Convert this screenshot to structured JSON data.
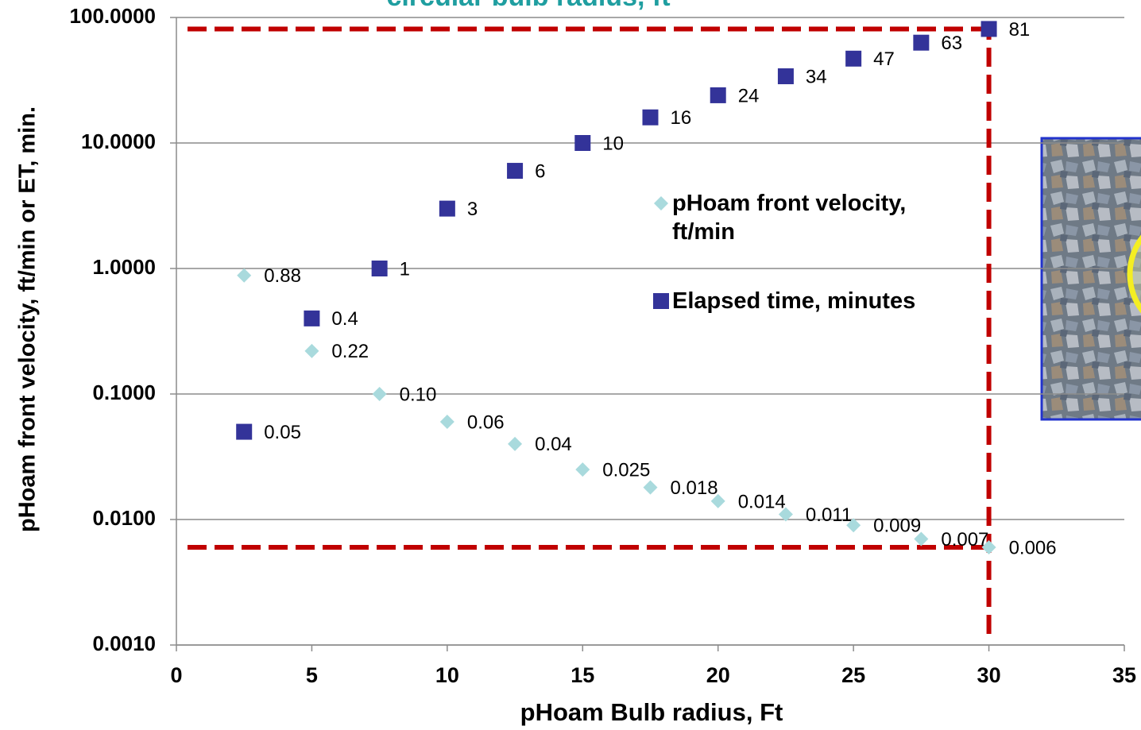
{
  "chart_data": {
    "type": "scatter",
    "title": "circular bulb radius, ft",
    "x_label": "pHoam Bulb radius, Ft",
    "y_label": "pHoam front velocity, ft/min or ET, min.",
    "xlim": [
      0,
      35
    ],
    "xticks": [
      0,
      5,
      10,
      15,
      20,
      25,
      30,
      35
    ],
    "ylim": [
      0.001,
      100
    ],
    "yticks": [
      {
        "value": 0.001,
        "label": "0.0010"
      },
      {
        "value": 0.01,
        "label": "0.0100"
      },
      {
        "value": 0.1,
        "label": "0.1000"
      },
      {
        "value": 1,
        "label": "1.0000"
      },
      {
        "value": 10,
        "label": "10.0000"
      },
      {
        "value": 100,
        "label": "100.0000"
      }
    ],
    "y_log": true,
    "grid": true,
    "legend": "center",
    "series": [
      {
        "name": "pHoam front velocity, ft/min",
        "color": "#a9dadd",
        "marker": "diamond",
        "x": [
          2.5,
          5,
          7.5,
          10,
          12.5,
          15,
          17.5,
          20,
          22.5,
          25,
          27.5,
          30
        ],
        "values": [
          0.88,
          0.22,
          0.1,
          0.06,
          0.04,
          0.025,
          0.018,
          0.014,
          0.011,
          0.009,
          0.007,
          0.006
        ],
        "value_labels": [
          "0.88",
          "0.22",
          "0.10",
          "0.06",
          "0.04",
          "0.025",
          "0.018",
          "0.014",
          "0.011",
          "0.009",
          "0.007",
          "0.006"
        ]
      },
      {
        "name": "Elapsed time, minutes",
        "color": "#333399",
        "marker": "square",
        "x": [
          2.5,
          5,
          7.5,
          10,
          12.5,
          15,
          17.5,
          20,
          22.5,
          25,
          27.5,
          30
        ],
        "values": [
          0.05,
          0.4,
          1,
          3,
          6,
          10,
          16,
          24,
          34,
          47,
          63,
          81
        ],
        "value_labels": [
          "0.05",
          "0.4",
          "1",
          "3",
          "6",
          "10",
          "16",
          "24",
          "34",
          "47",
          "63",
          "81"
        ]
      }
    ]
  }
}
